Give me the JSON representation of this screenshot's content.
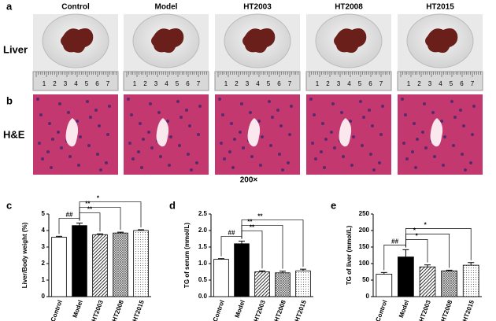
{
  "panel_labels": [
    "a",
    "b",
    "c",
    "d",
    "e"
  ],
  "columns": [
    "Control",
    "Model",
    "HT2003",
    "HT2008",
    "HT2015"
  ],
  "row_labels": [
    "Liver",
    "H&E"
  ],
  "magnification": "200×",
  "ruler_labels": [
    "1",
    "2",
    "3",
    "4",
    "5",
    "6",
    "7"
  ],
  "chart_data": [
    {
      "type": "bar",
      "ylabel": "Liver/Body weight (%)",
      "categories": [
        "Control",
        "Model",
        "HT2003",
        "HT2008",
        "HT2015"
      ],
      "values": [
        3.6,
        4.3,
        3.75,
        3.85,
        4.0
      ],
      "errors": [
        0.05,
        0.15,
        0.05,
        0.05,
        0.05
      ],
      "patterns": [
        "none",
        "solid",
        "diagonal",
        "crosshatch",
        "dots"
      ],
      "ylim": [
        0,
        5
      ],
      "yticks": [
        0,
        1,
        2,
        3,
        4,
        5
      ],
      "annotations": [
        {
          "text": "##",
          "from": "Control",
          "to": "Model"
        },
        {
          "text": "**",
          "from": "Model",
          "to": "HT2003"
        },
        {
          "text": "**",
          "from": "Model",
          "to": "HT2008"
        },
        {
          "text": "*",
          "from": "Model",
          "to": "HT2015"
        }
      ]
    },
    {
      "type": "bar",
      "ylabel": "TG of serum (mmol/L)",
      "categories": [
        "Control",
        "Model",
        "HT2003",
        "HT2008",
        "HT2015"
      ],
      "values": [
        1.13,
        1.6,
        0.75,
        0.72,
        0.78
      ],
      "errors": [
        0.02,
        0.08,
        0.03,
        0.05,
        0.05
      ],
      "patterns": [
        "none",
        "solid",
        "diagonal",
        "crosshatch",
        "dots"
      ],
      "ylim": [
        0,
        2.5
      ],
      "yticks": [
        {
          "value": 0,
          "label": "0.0"
        },
        0.5,
        {
          "value": 1,
          "label": "1.0"
        },
        1.5,
        {
          "value": 2,
          "label": "2.0"
        },
        2.5
      ],
      "annotations": [
        {
          "text": "##",
          "from": "Control",
          "to": "Model"
        },
        {
          "text": "**",
          "from": "Model",
          "to": "HT2003"
        },
        {
          "text": "**",
          "from": "Model",
          "to": "HT2008"
        },
        {
          "text": "**",
          "from": "Model",
          "to": "HT2015"
        }
      ]
    },
    {
      "type": "bar",
      "ylabel": "TG of liver (mmol/L)",
      "categories": [
        "Control",
        "Model",
        "HT2003",
        "HT2008",
        "HT2015"
      ],
      "values": [
        68,
        120,
        90,
        78,
        95
      ],
      "errors": [
        5,
        22,
        6,
        2,
        8
      ],
      "patterns": [
        "none",
        "solid",
        "diagonal",
        "crosshatch",
        "dots"
      ],
      "ylim": [
        0,
        250
      ],
      "yticks": [
        0,
        50,
        100,
        150,
        200,
        250
      ],
      "annotations": [
        {
          "text": "##",
          "from": "Control",
          "to": "Model"
        },
        {
          "text": "*",
          "from": "Model",
          "to": "HT2003"
        },
        {
          "text": "*",
          "from": "Model",
          "to": "HT2008"
        },
        {
          "text": "*",
          "from": "Model",
          "to": "HT2015"
        }
      ]
    }
  ]
}
